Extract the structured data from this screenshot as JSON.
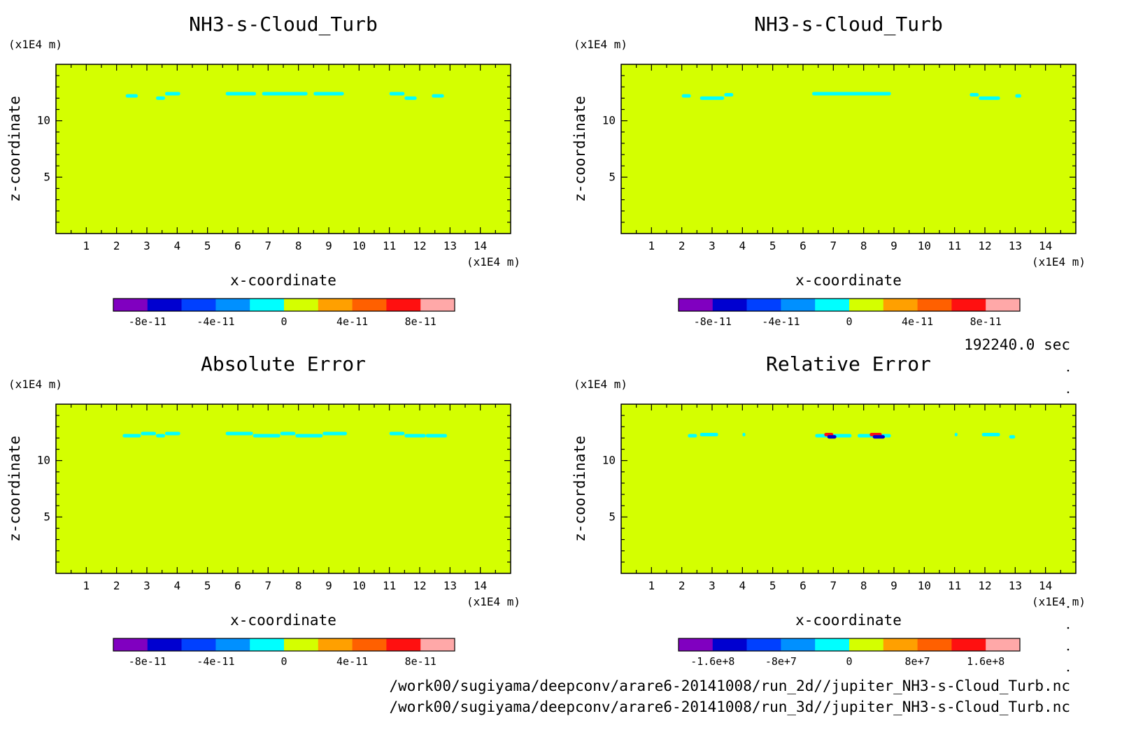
{
  "chart_data": [
    {
      "type": "heatmap",
      "title": "NH3-s-Cloud_Turb",
      "xlabel": "x-coordinate",
      "ylabel": "z-coordinate",
      "x_unit": "(x1E4 m)",
      "y_unit": "(x1E4 m)",
      "xlim": [
        0,
        15
      ],
      "ylim": [
        0,
        15
      ],
      "x_ticks": [
        "1",
        "2",
        "3",
        "4",
        "5",
        "6",
        "7",
        "8",
        "9",
        "10",
        "11",
        "12",
        "13",
        "14"
      ],
      "y_ticks": [
        "5",
        "10"
      ],
      "background_color": "#d4ff00",
      "features": [
        {
          "x": [
            2.3,
            2.7
          ],
          "z": 12.2,
          "color": "#00ffff"
        },
        {
          "x": [
            3.3,
            3.6
          ],
          "z": 12.0,
          "color": "#00ffff"
        },
        {
          "x": [
            3.6,
            4.1
          ],
          "z": 12.4,
          "color": "#00ffff"
        },
        {
          "x": [
            5.6,
            6.6
          ],
          "z": 12.4,
          "color": "#00ffff"
        },
        {
          "x": [
            6.8,
            8.3
          ],
          "z": 12.4,
          "color": "#00ffff"
        },
        {
          "x": [
            8.5,
            9.5
          ],
          "z": 12.4,
          "color": "#00ffff"
        },
        {
          "x": [
            11.0,
            11.5
          ],
          "z": 12.4,
          "color": "#00ffff"
        },
        {
          "x": [
            11.5,
            11.9
          ],
          "z": 12.0,
          "color": "#00ffff"
        },
        {
          "x": [
            12.4,
            12.8
          ],
          "z": 12.2,
          "color": "#00ffff"
        }
      ],
      "colorbar": {
        "colors": [
          "#8000c0",
          "#0000d0",
          "#0040ff",
          "#0090ff",
          "#00ffff",
          "#d4ff00",
          "#ffa000",
          "#ff6000",
          "#ff1010",
          "#ffa8a8"
        ],
        "labels": [
          "-8e-11",
          "-4e-11",
          "0",
          "4e-11",
          "8e-11"
        ]
      }
    },
    {
      "type": "heatmap",
      "title": "NH3-s-Cloud_Turb",
      "xlabel": "x-coordinate",
      "ylabel": "z-coordinate",
      "x_unit": "(x1E4 m)",
      "y_unit": "(x1E4 m)",
      "xlim": [
        0,
        15
      ],
      "ylim": [
        0,
        15
      ],
      "x_ticks": [
        "1",
        "2",
        "3",
        "4",
        "5",
        "6",
        "7",
        "8",
        "9",
        "10",
        "11",
        "12",
        "13",
        "14"
      ],
      "y_ticks": [
        "5",
        "10"
      ],
      "background_color": "#d4ff00",
      "features": [
        {
          "x": [
            2.0,
            2.3
          ],
          "z": 12.2,
          "color": "#00ffff"
        },
        {
          "x": [
            2.6,
            3.4
          ],
          "z": 12.0,
          "color": "#00ffff"
        },
        {
          "x": [
            3.4,
            3.7
          ],
          "z": 12.3,
          "color": "#00ffff"
        },
        {
          "x": [
            6.3,
            8.9
          ],
          "z": 12.4,
          "color": "#00ffff"
        },
        {
          "x": [
            11.5,
            11.8
          ],
          "z": 12.3,
          "color": "#00ffff"
        },
        {
          "x": [
            11.8,
            12.5
          ],
          "z": 12.0,
          "color": "#00ffff"
        },
        {
          "x": [
            13.0,
            13.2
          ],
          "z": 12.2,
          "color": "#00ffff"
        }
      ],
      "colorbar": {
        "colors": [
          "#8000c0",
          "#0000d0",
          "#0040ff",
          "#0090ff",
          "#00ffff",
          "#d4ff00",
          "#ffa000",
          "#ff6000",
          "#ff1010",
          "#ffa8a8"
        ],
        "labels": [
          "-8e-11",
          "-4e-11",
          "0",
          "4e-11",
          "8e-11"
        ]
      }
    },
    {
      "type": "heatmap",
      "title": "Absolute Error",
      "xlabel": "x-coordinate",
      "ylabel": "z-coordinate",
      "x_unit": "(x1E4 m)",
      "y_unit": "(x1E4 m)",
      "xlim": [
        0,
        15
      ],
      "ylim": [
        0,
        15
      ],
      "x_ticks": [
        "1",
        "2",
        "3",
        "4",
        "5",
        "6",
        "7",
        "8",
        "9",
        "10",
        "11",
        "12",
        "13",
        "14"
      ],
      "y_ticks": [
        "5",
        "10"
      ],
      "background_color": "#d4ff00",
      "features": [
        {
          "x": [
            2.2,
            2.8
          ],
          "z": 12.2,
          "color": "#00ffff"
        },
        {
          "x": [
            2.8,
            3.3
          ],
          "z": 12.4,
          "color": "#00ffff"
        },
        {
          "x": [
            3.3,
            3.6
          ],
          "z": 12.2,
          "color": "#00ffff"
        },
        {
          "x": [
            3.6,
            4.1
          ],
          "z": 12.4,
          "color": "#00ffff"
        },
        {
          "x": [
            5.6,
            6.5
          ],
          "z": 12.4,
          "color": "#00ffff"
        },
        {
          "x": [
            6.5,
            7.4
          ],
          "z": 12.2,
          "color": "#00ffff"
        },
        {
          "x": [
            7.4,
            7.9
          ],
          "z": 12.4,
          "color": "#00ffff"
        },
        {
          "x": [
            7.9,
            8.8
          ],
          "z": 12.2,
          "color": "#00ffff"
        },
        {
          "x": [
            8.8,
            9.6
          ],
          "z": 12.4,
          "color": "#00ffff"
        },
        {
          "x": [
            11.0,
            11.5
          ],
          "z": 12.4,
          "color": "#00ffff"
        },
        {
          "x": [
            11.5,
            12.2
          ],
          "z": 12.2,
          "color": "#00ffff"
        },
        {
          "x": [
            12.2,
            12.9
          ],
          "z": 12.2,
          "color": "#00ffff"
        }
      ],
      "colorbar": {
        "colors": [
          "#8000c0",
          "#0000d0",
          "#0040ff",
          "#0090ff",
          "#00ffff",
          "#d4ff00",
          "#ffa000",
          "#ff6000",
          "#ff1010",
          "#ffa8a8"
        ],
        "labels": [
          "-8e-11",
          "-4e-11",
          "0",
          "4e-11",
          "8e-11"
        ]
      }
    },
    {
      "type": "heatmap",
      "title": "Relative Error",
      "xlabel": "x-coordinate",
      "ylabel": "z-coordinate",
      "x_unit": "(x1E4 m)",
      "y_unit": "(x1E4 m)",
      "xlim": [
        0,
        15
      ],
      "ylim": [
        0,
        15
      ],
      "x_ticks": [
        "1",
        "2",
        "3",
        "4",
        "5",
        "6",
        "7",
        "8",
        "9",
        "10",
        "11",
        "12",
        "13",
        "14"
      ],
      "y_ticks": [
        "5",
        "10"
      ],
      "background_color": "#d4ff00",
      "features": [
        {
          "x": [
            2.2,
            2.5
          ],
          "z": 12.2,
          "color": "#00ffff"
        },
        {
          "x": [
            2.6,
            3.2
          ],
          "z": 12.3,
          "color": "#00ffff"
        },
        {
          "x": [
            4.0,
            4.1
          ],
          "z": 12.3,
          "color": "#00ffff"
        },
        {
          "x": [
            6.4,
            7.6
          ],
          "z": 12.2,
          "color": "#00ffff"
        },
        {
          "x": [
            6.7,
            7.0
          ],
          "z": 12.3,
          "color": "#ff1010"
        },
        {
          "x": [
            6.8,
            7.1
          ],
          "z": 12.1,
          "color": "#0000d0"
        },
        {
          "x": [
            7.8,
            8.9
          ],
          "z": 12.2,
          "color": "#00ffff"
        },
        {
          "x": [
            8.2,
            8.6
          ],
          "z": 12.3,
          "color": "#ff1010"
        },
        {
          "x": [
            8.3,
            8.7
          ],
          "z": 12.1,
          "color": "#0000d0"
        },
        {
          "x": [
            11.0,
            11.1
          ],
          "z": 12.3,
          "color": "#00ffff"
        },
        {
          "x": [
            11.9,
            12.5
          ],
          "z": 12.3,
          "color": "#00ffff"
        },
        {
          "x": [
            12.8,
            13.0
          ],
          "z": 12.1,
          "color": "#00ffff"
        }
      ],
      "colorbar": {
        "colors": [
          "#8000c0",
          "#0000d0",
          "#0040ff",
          "#0090ff",
          "#00ffff",
          "#d4ff00",
          "#ffa000",
          "#ff6000",
          "#ff1010",
          "#ffa8a8"
        ],
        "labels": [
          "-1.6e+8",
          "-8e+7",
          "0",
          "8e+7",
          "1.6e+8"
        ]
      }
    }
  ],
  "time_label": "192240.0 sec",
  "footer_lines": [
    "/work00/sugiyama/deepconv/arare6-20141008/run_2d//jupiter_NH3-s-Cloud_Turb.nc",
    "/work00/sugiyama/deepconv/arare6-20141008/run_3d//jupiter_NH3-s-Cloud_Turb.nc"
  ]
}
